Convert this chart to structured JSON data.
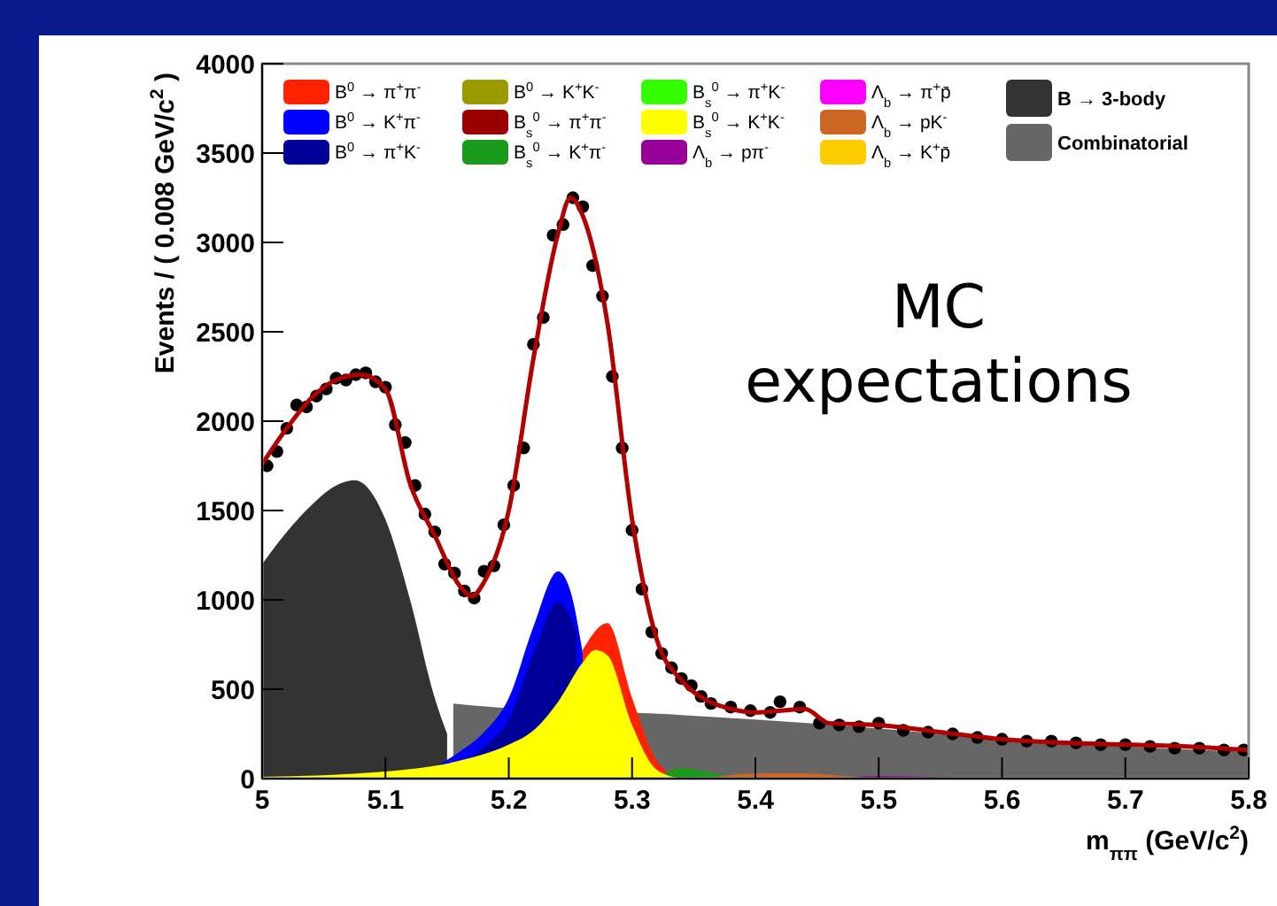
{
  "chart_data": {
    "type": "area",
    "xlabel": "m$_{ππ}$ (GeV/c$^{2}$)",
    "ylabel": "Events / ( 0.008 GeV/c$^{2}$ )",
    "xlim": [
      5,
      5.8
    ],
    "xticks": [
      5,
      5.1,
      5.2,
      5.3,
      5.4,
      5.5,
      5.6,
      5.7,
      5.8
    ],
    "ylim": [
      0,
      4000
    ],
    "yticks": [
      0,
      500,
      1000,
      1500,
      2000,
      2500,
      3000,
      3500,
      4000
    ],
    "legend": "top",
    "annotations": [
      "MC expectations"
    ],
    "series": [
      {
        "name": "B$^{0}$ → π$^{+}$π$^{-}$",
        "color": "#ff2200",
        "x": [
          5.26,
          5.28,
          5.3,
          5.32,
          5.34
        ],
        "values": [
          720,
          870,
          450,
          100,
          0
        ]
      },
      {
        "name": "B$^{0}$ → K$^{+}$π$^{-}$",
        "color": "#0000ff",
        "x": [
          5.12,
          5.16,
          5.18,
          5.2,
          5.22,
          5.24,
          5.25,
          5.26
        ],
        "values": [
          0,
          150,
          260,
          450,
          850,
          1160,
          1050,
          700
        ]
      },
      {
        "name": "B$^{0}$ → π$^{+}$K$^{-}$",
        "color": "#000099",
        "x": [
          5.14,
          5.18,
          5.2,
          5.22,
          5.24,
          5.25,
          5.255
        ],
        "values": [
          0,
          180,
          330,
          700,
          990,
          900,
          820
        ]
      },
      {
        "name": "B$^{0}$ → K$^{+}$K$^{-}$",
        "color": "#999900"
      },
      {
        "name": "B$_{s}$$^{0}$ → π$^{+}$π$^{-}$",
        "color": "#990000"
      },
      {
        "name": "B$_{s}$$^{0}$ → K$^{+}$π$^{-}$",
        "color": "#1a9a1a",
        "x": [
          5.32,
          5.34,
          5.36,
          5.38,
          5.4
        ],
        "values": [
          0,
          60,
          40,
          10,
          0
        ]
      },
      {
        "name": "B$_{s}$$^{0}$ → π$^{+}$K$^{-}$",
        "color": "#33ff00"
      },
      {
        "name": "B$_{s}$$^{0}$ → K$^{+}$K$^{-}$",
        "color": "#ffff00",
        "x": [
          5,
          5.1,
          5.16,
          5.2,
          5.22,
          5.24,
          5.26,
          5.27,
          5.28,
          5.3,
          5.32,
          5.34
        ],
        "values": [
          10,
          40,
          100,
          190,
          270,
          430,
          650,
          720,
          690,
          300,
          50,
          0
        ]
      },
      {
        "name": "Λ$_{b}$ → pπ$^{-}$",
        "color": "#990099",
        "x": [
          5.46,
          5.5,
          5.54,
          5.58
        ],
        "values": [
          0,
          15,
          10,
          0
        ]
      },
      {
        "name": "Λ$_{b}$ → π$^{+}$p̄",
        "color": "#ff00ff"
      },
      {
        "name": "Λ$_{b}$ → pK$^{-}$",
        "color": "#cc6622",
        "x": [
          5.36,
          5.4,
          5.44,
          5.48,
          5.5
        ],
        "values": [
          0,
          30,
          30,
          10,
          0
        ]
      },
      {
        "name": "Λ$_{b}$ → K$^{+}$p̄",
        "color": "#ffcc00"
      },
      {
        "name": "B → 3-body",
        "color": "#333333",
        "x": [
          5,
          5.02,
          5.04,
          5.06,
          5.075,
          5.08,
          5.1,
          5.12,
          5.14,
          5.15
        ],
        "values": [
          1200,
          1380,
          1530,
          1640,
          1670,
          1660,
          1450,
          1000,
          450,
          250
        ]
      },
      {
        "name": "Combinatorial",
        "color": "#666666",
        "x": [
          5.155,
          5.17,
          5.33,
          5.4,
          5.5,
          5.6,
          5.7,
          5.8
        ],
        "values": [
          420,
          410,
          360,
          330,
          280,
          220,
          180,
          150
        ]
      },
      {
        "type": "scatter",
        "color": "#000000",
        "marker": "circle",
        "x": [
          5.004,
          5.012,
          5.02,
          5.028,
          5.036,
          5.044,
          5.052,
          5.06,
          5.068,
          5.076,
          5.084,
          5.092,
          5.1,
          5.108,
          5.116,
          5.124,
          5.132,
          5.14,
          5.148,
          5.156,
          5.164,
          5.172,
          5.18,
          5.188,
          5.196,
          5.204,
          5.212,
          5.22,
          5.228,
          5.236,
          5.244,
          5.252,
          5.26,
          5.268,
          5.276,
          5.284,
          5.292,
          5.3,
          5.308,
          5.316,
          5.324,
          5.332,
          5.34,
          5.348,
          5.356,
          5.364,
          5.38,
          5.396,
          5.412,
          5.42,
          5.436,
          5.452,
          5.468,
          5.484,
          5.5,
          5.52,
          5.54,
          5.56,
          5.58,
          5.6,
          5.62,
          5.64,
          5.66,
          5.68,
          5.7,
          5.72,
          5.74,
          5.76,
          5.78,
          5.796
        ],
        "values": [
          1750,
          1830,
          1960,
          2090,
          2080,
          2140,
          2180,
          2240,
          2230,
          2260,
          2270,
          2220,
          2190,
          1980,
          1880,
          1640,
          1480,
          1380,
          1200,
          1150,
          1050,
          1010,
          1160,
          1190,
          1420,
          1640,
          1850,
          2430,
          2580,
          3040,
          3100,
          3250,
          3200,
          2870,
          2700,
          2250,
          1850,
          1390,
          1060,
          820,
          700,
          620,
          560,
          520,
          460,
          420,
          400,
          380,
          370,
          430,
          400,
          310,
          300,
          290,
          310,
          270,
          260,
          250,
          230,
          220,
          210,
          210,
          200,
          190,
          190,
          180,
          170,
          170,
          160,
          160
        ]
      },
      {
        "type": "line",
        "color": "#b00000",
        "x": [
          5,
          5.02,
          5.04,
          5.06,
          5.08,
          5.1,
          5.12,
          5.14,
          5.16,
          5.17,
          5.18,
          5.2,
          5.22,
          5.24,
          5.25,
          5.26,
          5.28,
          5.3,
          5.32,
          5.34,
          5.36,
          5.38,
          5.4,
          5.42,
          5.44,
          5.46,
          5.5,
          5.55,
          5.6,
          5.65,
          5.7,
          5.75,
          5.8
        ],
        "values": [
          1760,
          1960,
          2130,
          2230,
          2260,
          2180,
          1650,
          1360,
          1080,
          1020,
          1100,
          1500,
          2350,
          3050,
          3250,
          3150,
          2550,
          1450,
          780,
          550,
          440,
          390,
          370,
          380,
          390,
          310,
          300,
          260,
          220,
          200,
          190,
          180,
          160
        ]
      }
    ]
  }
}
